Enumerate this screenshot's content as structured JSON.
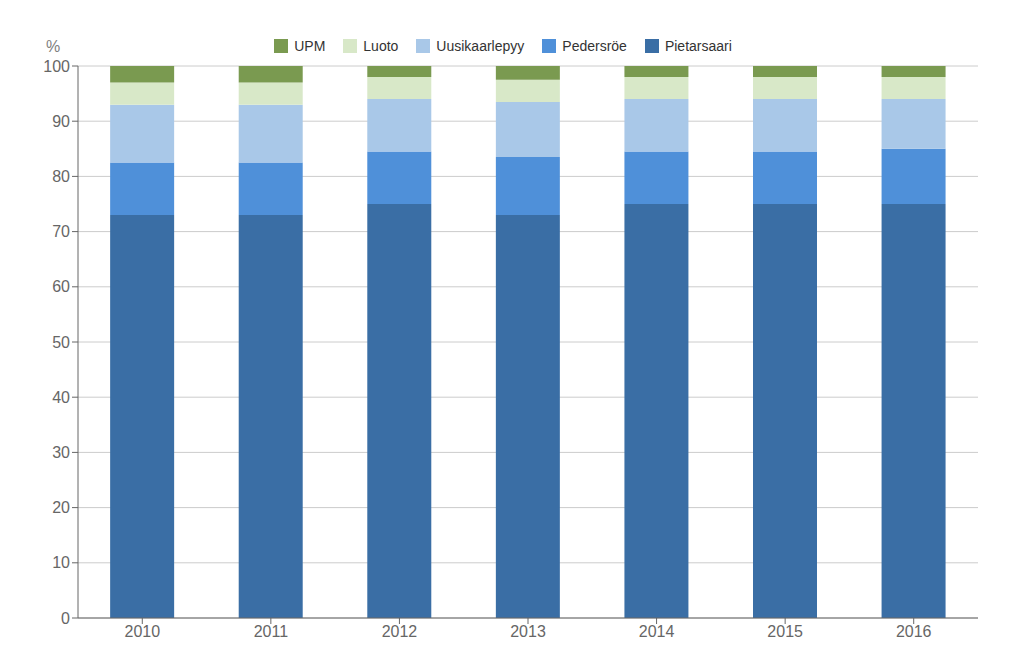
{
  "chart_data": {
    "type": "bar",
    "stacked": true,
    "categories": [
      "2010",
      "2011",
      "2012",
      "2013",
      "2014",
      "2015",
      "2016"
    ],
    "series": [
      {
        "name": "Pietarsaari",
        "color": "#3A6EA5",
        "values": [
          73.0,
          73.0,
          75.0,
          73.0,
          75.0,
          75.0,
          75.0
        ]
      },
      {
        "name": "Pedersröe",
        "color": "#4F90D9",
        "values": [
          9.5,
          9.5,
          9.5,
          10.5,
          9.5,
          9.5,
          10.0
        ]
      },
      {
        "name": "Uusikaarlepyy",
        "color": "#A9C8E8",
        "values": [
          10.5,
          10.5,
          9.5,
          10.0,
          9.5,
          9.5,
          9.0
        ]
      },
      {
        "name": "Luoto",
        "color": "#D8E8C8",
        "values": [
          4.0,
          4.0,
          4.0,
          4.0,
          4.0,
          4.0,
          4.0
        ]
      },
      {
        "name": "UPM",
        "color": "#7A9A50",
        "values": [
          3.0,
          3.0,
          2.0,
          2.5,
          2.0,
          2.0,
          2.0
        ]
      }
    ],
    "y_label": "%",
    "ylim": [
      0,
      100
    ],
    "yticks": [
      0,
      10,
      20,
      30,
      40,
      50,
      60,
      70,
      80,
      90,
      100
    ],
    "grid": true,
    "legend": "top"
  }
}
